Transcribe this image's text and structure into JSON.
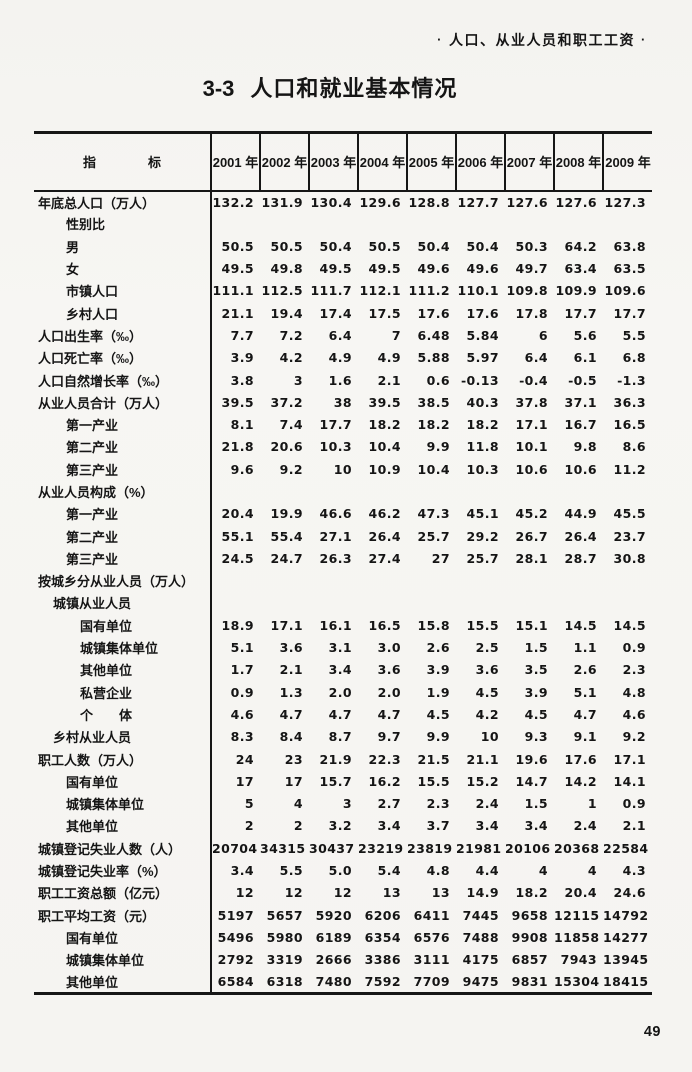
{
  "page": {
    "section_header": {
      "bullet": "·",
      "text": "人口、从业人员和职工工资"
    },
    "title_number": "3-3",
    "title_text": "人口和就业基本情况",
    "page_number": "49"
  },
  "table": {
    "header": {
      "indicator_label": "指　　　　标",
      "years": [
        "2001 年",
        "2002 年",
        "2003 年",
        "2004 年",
        "2005 年",
        "2006 年",
        "2007 年",
        "2008 年",
        "2009 年"
      ]
    },
    "rows": [
      {
        "label": "年底总人口（万人）",
        "indent": 0,
        "values": [
          "132.2",
          "131.9",
          "130.4",
          "129.6",
          "128.8",
          "127.7",
          "127.6",
          "127.6",
          "127.3"
        ]
      },
      {
        "label": "性别比",
        "indent": 2,
        "values": [
          "",
          "",
          "",
          "",
          "",
          "",
          "",
          "",
          ""
        ]
      },
      {
        "label": "男",
        "indent": 2,
        "values": [
          "50.5",
          "50.5",
          "50.4",
          "50.5",
          "50.4",
          "50.4",
          "50.3",
          "64.2",
          "63.8"
        ]
      },
      {
        "label": "女",
        "indent": 2,
        "values": [
          "49.5",
          "49.8",
          "49.5",
          "49.5",
          "49.6",
          "49.6",
          "49.7",
          "63.4",
          "63.5"
        ]
      },
      {
        "label": "市镇人口",
        "indent": 2,
        "values": [
          "111.1",
          "112.5",
          "111.7",
          "112.1",
          "111.2",
          "110.1",
          "109.8",
          "109.9",
          "109.6"
        ]
      },
      {
        "label": "乡村人口",
        "indent": 2,
        "values": [
          "21.1",
          "19.4",
          "17.4",
          "17.5",
          "17.6",
          "17.6",
          "17.8",
          "17.7",
          "17.7"
        ]
      },
      {
        "label": "人口出生率（‰）",
        "indent": 0,
        "values": [
          "7.7",
          "7.2",
          "6.4",
          "7",
          "6.48",
          "5.84",
          "6",
          "5.6",
          "5.5"
        ]
      },
      {
        "label": "人口死亡率（‰）",
        "indent": 0,
        "values": [
          "3.9",
          "4.2",
          "4.9",
          "4.9",
          "5.88",
          "5.97",
          "6.4",
          "6.1",
          "6.8"
        ]
      },
      {
        "label": "人口自然增长率（‰）",
        "indent": 0,
        "values": [
          "3.8",
          "3",
          "1.6",
          "2.1",
          "0.6",
          "-0.13",
          "-0.4",
          "-0.5",
          "-1.3"
        ]
      },
      {
        "label": "从业人员合计（万人）",
        "indent": 0,
        "values": [
          "39.5",
          "37.2",
          "38",
          "39.5",
          "38.5",
          "40.3",
          "37.8",
          "37.1",
          "36.3"
        ]
      },
      {
        "label": "第一产业",
        "indent": 2,
        "values": [
          "8.1",
          "7.4",
          "17.7",
          "18.2",
          "18.2",
          "18.2",
          "17.1",
          "16.7",
          "16.5"
        ]
      },
      {
        "label": "第二产业",
        "indent": 2,
        "values": [
          "21.8",
          "20.6",
          "10.3",
          "10.4",
          "9.9",
          "11.8",
          "10.1",
          "9.8",
          "8.6"
        ]
      },
      {
        "label": "第三产业",
        "indent": 2,
        "values": [
          "9.6",
          "9.2",
          "10",
          "10.9",
          "10.4",
          "10.3",
          "10.6",
          "10.6",
          "11.2"
        ]
      },
      {
        "label": "从业人员构成（%）",
        "indent": 0,
        "values": [
          "",
          "",
          "",
          "",
          "",
          "",
          "",
          "",
          ""
        ]
      },
      {
        "label": "第一产业",
        "indent": 2,
        "values": [
          "20.4",
          "19.9",
          "46.6",
          "46.2",
          "47.3",
          "45.1",
          "45.2",
          "44.9",
          "45.5"
        ]
      },
      {
        "label": "第二产业",
        "indent": 2,
        "values": [
          "55.1",
          "55.4",
          "27.1",
          "26.4",
          "25.7",
          "29.2",
          "26.7",
          "26.4",
          "23.7"
        ]
      },
      {
        "label": "第三产业",
        "indent": 2,
        "values": [
          "24.5",
          "24.7",
          "26.3",
          "27.4",
          "27",
          "25.7",
          "28.1",
          "28.7",
          "30.8"
        ]
      },
      {
        "label": "按城乡分从业人员（万人）",
        "indent": 0,
        "values": [
          "",
          "",
          "",
          "",
          "",
          "",
          "",
          "",
          ""
        ]
      },
      {
        "label": "城镇从业人员",
        "indent": 1,
        "values": [
          "",
          "",
          "",
          "",
          "",
          "",
          "",
          "",
          ""
        ]
      },
      {
        "label": "国有单位",
        "indent": 3,
        "values": [
          "18.9",
          "17.1",
          "16.1",
          "16.5",
          "15.8",
          "15.5",
          "15.1",
          "14.5",
          "14.5"
        ]
      },
      {
        "label": "城镇集体单位",
        "indent": 3,
        "values": [
          "5.1",
          "3.6",
          "3.1",
          "3.0",
          "2.6",
          "2.5",
          "1.5",
          "1.1",
          "0.9"
        ]
      },
      {
        "label": "其他单位",
        "indent": 3,
        "values": [
          "1.7",
          "2.1",
          "3.4",
          "3.6",
          "3.9",
          "3.6",
          "3.5",
          "2.6",
          "2.3"
        ]
      },
      {
        "label": "私营企业",
        "indent": 3,
        "values": [
          "0.9",
          "1.3",
          "2.0",
          "2.0",
          "1.9",
          "4.5",
          "3.9",
          "5.1",
          "4.8"
        ]
      },
      {
        "label": "个　　体",
        "indent": 3,
        "values": [
          "4.6",
          "4.7",
          "4.7",
          "4.7",
          "4.5",
          "4.2",
          "4.5",
          "4.7",
          "4.6"
        ]
      },
      {
        "label": "乡村从业人员",
        "indent": 1,
        "values": [
          "8.3",
          "8.4",
          "8.7",
          "9.7",
          "9.9",
          "10",
          "9.3",
          "9.1",
          "9.2"
        ]
      },
      {
        "label": "职工人数（万人）",
        "indent": 0,
        "values": [
          "24",
          "23",
          "21.9",
          "22.3",
          "21.5",
          "21.1",
          "19.6",
          "17.6",
          "17.1"
        ]
      },
      {
        "label": "国有单位",
        "indent": 2,
        "values": [
          "17",
          "17",
          "15.7",
          "16.2",
          "15.5",
          "15.2",
          "14.7",
          "14.2",
          "14.1"
        ]
      },
      {
        "label": "城镇集体单位",
        "indent": 2,
        "values": [
          "5",
          "4",
          "3",
          "2.7",
          "2.3",
          "2.4",
          "1.5",
          "1",
          "0.9"
        ]
      },
      {
        "label": "其他单位",
        "indent": 2,
        "values": [
          "2",
          "2",
          "3.2",
          "3.4",
          "3.7",
          "3.4",
          "3.4",
          "2.4",
          "2.1"
        ]
      },
      {
        "label": "城镇登记失业人数（人）",
        "indent": 0,
        "values": [
          "20704",
          "34315",
          "30437",
          "23219",
          "23819",
          "21981",
          "20106",
          "20368",
          "22584"
        ]
      },
      {
        "label": "城镇登记失业率（%）",
        "indent": 0,
        "values": [
          "3.4",
          "5.5",
          "5.0",
          "5.4",
          "4.8",
          "4.4",
          "4",
          "4",
          "4.3"
        ]
      },
      {
        "label": "职工工资总额（亿元）",
        "indent": 0,
        "values": [
          "12",
          "12",
          "12",
          "13",
          "13",
          "14.9",
          "18.2",
          "20.4",
          "24.6"
        ]
      },
      {
        "label": "职工平均工资（元）",
        "indent": 0,
        "values": [
          "5197",
          "5657",
          "5920",
          "6206",
          "6411",
          "7445",
          "9658",
          "12115",
          "14792"
        ]
      },
      {
        "label": "国有单位",
        "indent": 2,
        "values": [
          "5496",
          "5980",
          "6189",
          "6354",
          "6576",
          "7488",
          "9908",
          "11858",
          "14277"
        ]
      },
      {
        "label": "城镇集体单位",
        "indent": 2,
        "values": [
          "2792",
          "3319",
          "2666",
          "3386",
          "3111",
          "4175",
          "6857",
          "7943",
          "13945"
        ]
      },
      {
        "label": "其他单位",
        "indent": 2,
        "values": [
          "6584",
          "6318",
          "7480",
          "7592",
          "7709",
          "9475",
          "9831",
          "15304",
          "18415"
        ]
      }
    ]
  }
}
